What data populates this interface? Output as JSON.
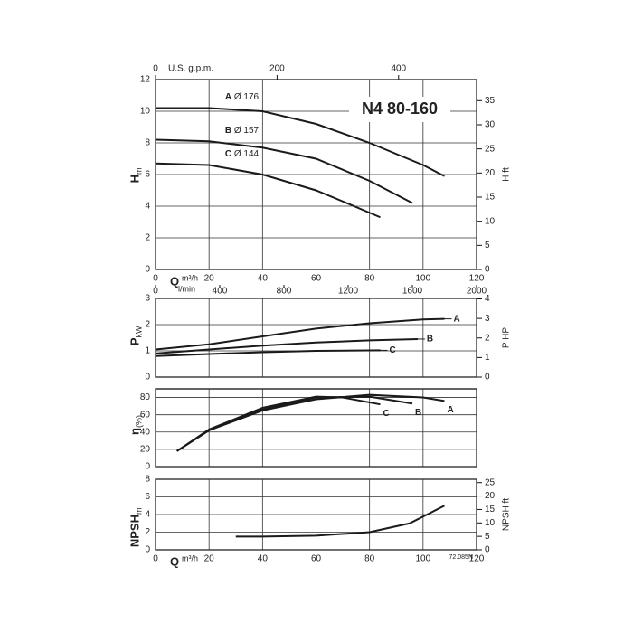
{
  "chart_data": [
    {
      "type": "line",
      "title": "N4 80-160",
      "color": "#1a1a1a",
      "grid": true,
      "xlabel": "Q",
      "xunit": "m³/h",
      "xlim": [
        0,
        120
      ],
      "xticks": [
        0,
        20,
        40,
        60,
        80,
        100,
        120
      ],
      "x2label": "U.S. g.p.m.",
      "x2lim": [
        0,
        528.3
      ],
      "x2ticks": [
        0,
        200,
        400
      ],
      "x3label": "l/min",
      "x3lim": [
        0,
        2000
      ],
      "x3ticks": [
        0,
        400,
        800,
        1200,
        1600,
        2000
      ],
      "ylabel": "H",
      "yunit": "m",
      "ylim": [
        0,
        12
      ],
      "yticks": [
        0,
        2,
        4,
        6,
        8,
        10,
        12
      ],
      "y2label": "H ft",
      "y2lim": [
        0,
        39.37
      ],
      "y2ticks": [
        0,
        5,
        10,
        15,
        20,
        25,
        30,
        35
      ],
      "series": [
        {
          "name": "A",
          "label": "Ø 176",
          "x": [
            0,
            20,
            40,
            60,
            80,
            100,
            108
          ],
          "values": [
            10.2,
            10.2,
            10.0,
            9.2,
            8.0,
            6.6,
            5.9
          ]
        },
        {
          "name": "B",
          "label": "Ø 157",
          "x": [
            0,
            20,
            40,
            60,
            80,
            96
          ],
          "values": [
            8.2,
            8.1,
            7.7,
            7.0,
            5.6,
            4.2
          ]
        },
        {
          "name": "C",
          "label": "Ø 144",
          "x": [
            0,
            20,
            40,
            60,
            70,
            84
          ],
          "values": [
            6.7,
            6.6,
            6.0,
            5.0,
            4.3,
            3.3
          ]
        }
      ]
    },
    {
      "type": "line",
      "color": "#1a1a1a",
      "grid": true,
      "xlim": [
        0,
        120
      ],
      "ylabel": "P",
      "yunit": "kW",
      "ylim": [
        0,
        3
      ],
      "yticks": [
        0,
        1,
        2,
        3
      ],
      "y2label": "P HP",
      "y2lim": [
        0,
        4.023
      ],
      "y2ticks": [
        0,
        1,
        2,
        3,
        4
      ],
      "series": [
        {
          "name": "A",
          "x": [
            0,
            20,
            40,
            60,
            80,
            100,
            108
          ],
          "values": [
            1.05,
            1.25,
            1.55,
            1.85,
            2.05,
            2.2,
            2.22
          ]
        },
        {
          "name": "B",
          "x": [
            0,
            20,
            40,
            60,
            80,
            98
          ],
          "values": [
            0.9,
            1.05,
            1.2,
            1.32,
            1.4,
            1.45
          ]
        },
        {
          "name": "C",
          "x": [
            0,
            20,
            40,
            60,
            84
          ],
          "values": [
            0.8,
            0.88,
            0.95,
            1.0,
            1.02
          ]
        }
      ]
    },
    {
      "type": "line",
      "color": "#1a1a1a",
      "grid": true,
      "xlim": [
        0,
        120
      ],
      "ylabel": "η",
      "yunit": "(%)",
      "ylim": [
        0,
        90
      ],
      "yticks": [
        0,
        20,
        40,
        60,
        80
      ],
      "series": [
        {
          "name": "A",
          "x": [
            8,
            20,
            40,
            60,
            80,
            100,
            108
          ],
          "values": [
            18,
            42,
            65,
            78,
            83,
            80,
            76
          ]
        },
        {
          "name": "B",
          "x": [
            8,
            20,
            40,
            60,
            80,
            96
          ],
          "values": [
            18,
            42,
            66,
            80,
            81,
            73
          ]
        },
        {
          "name": "C",
          "x": [
            8,
            20,
            40,
            60,
            70,
            84
          ],
          "values": [
            18,
            43,
            68,
            81,
            80,
            72
          ]
        }
      ]
    },
    {
      "type": "line",
      "color": "#1a1a1a",
      "grid": true,
      "note": "72.085N",
      "xlabel": "Q",
      "xunit": "m³/h",
      "xlim": [
        0,
        120
      ],
      "xticks": [
        0,
        20,
        40,
        60,
        80,
        100,
        120
      ],
      "ylabel": "NPSH",
      "yunit": "m",
      "ylim": [
        0,
        8
      ],
      "yticks": [
        0,
        2,
        4,
        6,
        8
      ],
      "y2label": "NPSH ft",
      "y2lim": [
        0,
        26.25
      ],
      "y2ticks": [
        0,
        5,
        10,
        15,
        20,
        25
      ],
      "series": [
        {
          "x": [
            30,
            40,
            60,
            80,
            95,
            108
          ],
          "values": [
            1.5,
            1.5,
            1.6,
            2.0,
            3.0,
            5.0
          ]
        }
      ]
    }
  ]
}
